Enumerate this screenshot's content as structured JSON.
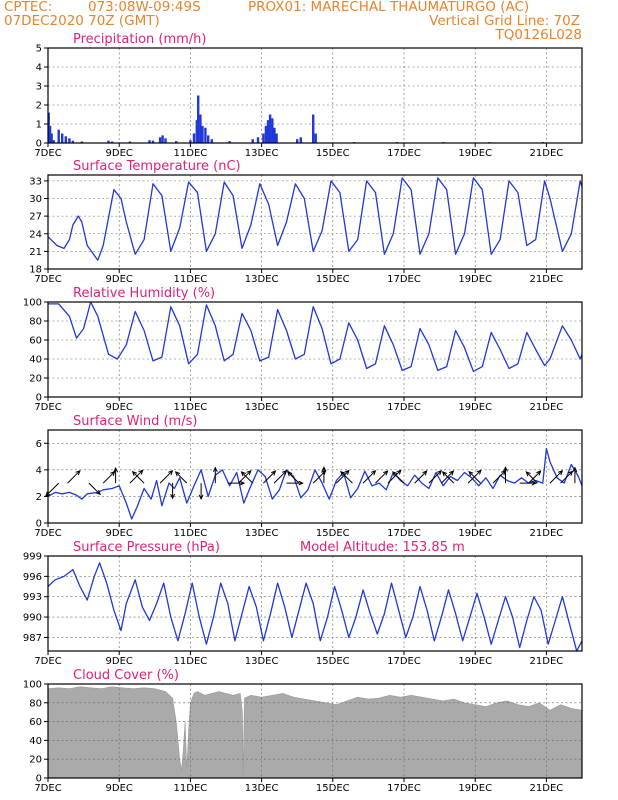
{
  "header": {
    "line1_left": "CPTEC:",
    "line1_mid": "073:08W-09:49S",
    "line1_right": "PROX01: MARECHAL THAUMATURGO (AC)",
    "line2_left": "07DEC2020 70Z (GMT)",
    "line2_right": "Vertical Grid Line: 70Z",
    "line3_right": "TQ0126L028"
  },
  "colors": {
    "header": "#e8842a",
    "title": "#e0207a",
    "line": "#2038d8",
    "cloud": "#aaaaaa",
    "arrow": "#000000"
  },
  "x_axis": {
    "days": [
      7,
      22
    ],
    "tick_labels": [
      "7DEC",
      "9DEC",
      "11DEC",
      "13DEC",
      "15DEC",
      "17DEC",
      "19DEC",
      "21DEC"
    ],
    "tick_days": [
      7,
      9,
      11,
      13,
      15,
      17,
      19,
      21
    ]
  },
  "chart_data": [
    {
      "id": "precip",
      "type": "bar",
      "title": "Precipitation (mm/h)",
      "ylim": [
        0,
        5
      ],
      "yticks": [
        0,
        1,
        2,
        3,
        4,
        5
      ],
      "bars": [
        [
          7.02,
          1.6
        ],
        [
          7.06,
          0.9
        ],
        [
          7.1,
          0.5
        ],
        [
          7.16,
          0.15
        ],
        [
          7.3,
          0.7
        ],
        [
          7.4,
          0.5
        ],
        [
          7.5,
          0.35
        ],
        [
          7.6,
          0.25
        ],
        [
          7.7,
          0.12
        ],
        [
          7.95,
          0.08
        ],
        [
          8.7,
          0.12
        ],
        [
          8.8,
          0.08
        ],
        [
          9.3,
          0.08
        ],
        [
          9.85,
          0.15
        ],
        [
          9.95,
          0.12
        ],
        [
          10.15,
          0.3
        ],
        [
          10.22,
          0.4
        ],
        [
          10.3,
          0.25
        ],
        [
          10.6,
          0.1
        ],
        [
          11.0,
          0.15
        ],
        [
          11.1,
          0.5
        ],
        [
          11.18,
          1.2
        ],
        [
          11.22,
          2.5
        ],
        [
          11.28,
          1.5
        ],
        [
          11.34,
          0.9
        ],
        [
          11.42,
          0.8
        ],
        [
          11.5,
          0.4
        ],
        [
          11.6,
          0.2
        ],
        [
          12.1,
          0.1
        ],
        [
          12.75,
          0.2
        ],
        [
          12.9,
          0.3
        ],
        [
          13.05,
          0.5
        ],
        [
          13.12,
          0.9
        ],
        [
          13.18,
          1.2
        ],
        [
          13.24,
          1.5
        ],
        [
          13.3,
          1.3
        ],
        [
          13.36,
          0.8
        ],
        [
          13.42,
          0.5
        ],
        [
          14.0,
          0.2
        ],
        [
          14.1,
          0.3
        ],
        [
          14.45,
          1.5
        ],
        [
          14.52,
          0.5
        ],
        [
          15.6,
          0.05
        ],
        [
          16.8,
          0.05
        ],
        [
          18.1,
          0.05
        ],
        [
          19.4,
          0.05
        ],
        [
          20.9,
          0.05
        ]
      ]
    },
    {
      "id": "temp",
      "type": "line",
      "title": "Surface Temperature (nC)",
      "ylim": [
        18,
        34
      ],
      "yticks": [
        18,
        21,
        24,
        27,
        30,
        33
      ],
      "ytick_labels": [
        "18",
        "21",
        "24",
        "27",
        "30",
        "33"
      ],
      "x": [
        7.0,
        7.25,
        7.45,
        7.6,
        7.7,
        7.85,
        7.95,
        8.1,
        8.4,
        8.55,
        8.85,
        9.05,
        9.2,
        9.45,
        9.7,
        9.95,
        10.2,
        10.45,
        10.7,
        10.95,
        11.2,
        11.45,
        11.7,
        11.95,
        12.2,
        12.45,
        12.7,
        12.95,
        13.2,
        13.45,
        13.7,
        13.95,
        14.2,
        14.45,
        14.7,
        14.95,
        15.2,
        15.45,
        15.7,
        15.95,
        16.2,
        16.45,
        16.7,
        16.95,
        17.2,
        17.45,
        17.7,
        17.95,
        18.2,
        18.45,
        18.7,
        18.95,
        19.2,
        19.45,
        19.7,
        19.95,
        20.2,
        20.45,
        20.7,
        20.95,
        21.1,
        21.45,
        21.7,
        21.95,
        22.0
      ],
      "y": [
        23.5,
        22.0,
        21.5,
        23.0,
        25.5,
        27.0,
        26.0,
        22.0,
        19.5,
        22.0,
        31.5,
        30.0,
        26.0,
        20.5,
        23.0,
        32.5,
        30.5,
        21.0,
        25.0,
        32.8,
        31.0,
        21.0,
        24.0,
        32.8,
        30.5,
        21.5,
        25.5,
        32.5,
        29.0,
        22.0,
        26.0,
        32.5,
        30.0,
        21.0,
        24.5,
        33.0,
        31.0,
        21.0,
        23.0,
        33.0,
        31.0,
        20.5,
        24.0,
        33.5,
        31.5,
        20.5,
        24.0,
        33.5,
        31.5,
        20.5,
        24.0,
        33.5,
        31.5,
        20.5,
        23.0,
        33.0,
        31.0,
        22.0,
        23.0,
        33.0,
        30.0,
        21.0,
        24.0,
        33.0,
        32.0
      ]
    },
    {
      "id": "rh",
      "type": "line",
      "title": "Relative Humidity (%)",
      "ylim": [
        0,
        100
      ],
      "yticks": [
        0,
        20,
        40,
        60,
        80,
        100
      ],
      "x": [
        7.0,
        7.3,
        7.6,
        7.8,
        8.0,
        8.2,
        8.4,
        8.7,
        8.95,
        9.2,
        9.45,
        9.7,
        9.95,
        10.2,
        10.45,
        10.7,
        10.95,
        11.2,
        11.45,
        11.7,
        11.95,
        12.2,
        12.45,
        12.7,
        12.95,
        13.2,
        13.45,
        13.7,
        13.95,
        14.2,
        14.45,
        14.7,
        14.95,
        15.2,
        15.45,
        15.7,
        15.95,
        16.2,
        16.45,
        16.7,
        16.95,
        17.2,
        17.45,
        17.7,
        17.95,
        18.2,
        18.45,
        18.7,
        18.95,
        19.2,
        19.45,
        19.7,
        19.95,
        20.2,
        20.45,
        20.7,
        20.95,
        21.1,
        21.45,
        21.7,
        21.95,
        22.0
      ],
      "y": [
        98,
        98,
        85,
        62,
        72,
        100,
        85,
        45,
        40,
        55,
        90,
        70,
        38,
        42,
        95,
        75,
        35,
        45,
        97,
        75,
        38,
        45,
        88,
        70,
        38,
        42,
        92,
        70,
        40,
        45,
        95,
        72,
        35,
        40,
        78,
        60,
        30,
        35,
        75,
        55,
        28,
        32,
        72,
        55,
        28,
        32,
        70,
        52,
        27,
        32,
        68,
        50,
        30,
        35,
        68,
        50,
        33,
        40,
        75,
        60,
        40,
        45
      ]
    },
    {
      "id": "wind",
      "type": "line",
      "title": "Surface Wind (m/s)",
      "ylim": [
        0,
        7
      ],
      "yticks": [
        0,
        2,
        4,
        6
      ],
      "x": [
        7.0,
        7.2,
        7.4,
        7.6,
        7.8,
        7.95,
        8.1,
        8.4,
        8.55,
        8.8,
        9.0,
        9.2,
        9.35,
        9.5,
        9.7,
        9.9,
        10.05,
        10.2,
        10.4,
        10.55,
        10.7,
        10.9,
        11.1,
        11.3,
        11.5,
        11.7,
        11.9,
        12.1,
        12.3,
        12.5,
        12.7,
        12.9,
        13.1,
        13.3,
        13.5,
        13.7,
        13.9,
        14.1,
        14.3,
        14.5,
        14.7,
        14.9,
        15.1,
        15.3,
        15.5,
        15.7,
        15.9,
        16.1,
        16.3,
        16.5,
        16.7,
        16.9,
        17.1,
        17.3,
        17.5,
        17.7,
        17.9,
        18.1,
        18.3,
        18.5,
        18.7,
        18.9,
        19.1,
        19.3,
        19.5,
        19.7,
        19.9,
        20.1,
        20.3,
        20.5,
        20.7,
        20.9,
        21.0,
        21.1,
        21.3,
        21.5,
        21.7,
        21.9,
        22.0
      ],
      "y": [
        2.0,
        2.3,
        2.2,
        2.3,
        2.1,
        1.8,
        2.2,
        2.3,
        2.5,
        2.6,
        2.8,
        1.5,
        0.3,
        1.2,
        2.6,
        1.8,
        3.2,
        1.3,
        3.0,
        2.6,
        3.4,
        1.5,
        2.8,
        4.0,
        2.0,
        3.6,
        4.0,
        2.8,
        3.8,
        1.5,
        2.8,
        4.0,
        3.5,
        1.8,
        2.5,
        4.0,
        3.5,
        1.9,
        2.5,
        4.0,
        3.0,
        1.8,
        3.2,
        3.8,
        1.9,
        2.6,
        3.9,
        2.8,
        3.0,
        2.5,
        3.8,
        3.2,
        2.8,
        3.6,
        3.0,
        2.6,
        3.8,
        2.8,
        3.5,
        3.2,
        3.8,
        3.4,
        2.8,
        3.4,
        2.6,
        3.6,
        3.2,
        3.0,
        3.4,
        3.0,
        3.2,
        3.0,
        5.6,
        4.6,
        3.4,
        3.0,
        4.4,
        3.5,
        2.8
      ],
      "arrows": [
        [
          7.3,
          225,
          1.8
        ],
        [
          7.55,
          45,
          1.6
        ],
        [
          8.15,
          135,
          1.2
        ],
        [
          8.55,
          45,
          1.3
        ],
        [
          8.9,
          0,
          1.0
        ],
        [
          9.3,
          45,
          1.8
        ],
        [
          9.7,
          315,
          1.3
        ],
        [
          10.15,
          45,
          1.6
        ],
        [
          10.5,
          180,
          1.0
        ],
        [
          10.9,
          315,
          1.2
        ],
        [
          11.3,
          180,
          1.2
        ],
        [
          11.7,
          0,
          1.1
        ],
        [
          12.05,
          90,
          1.3
        ],
        [
          12.35,
          45,
          1.6
        ],
        [
          12.75,
          315,
          1.2
        ],
        [
          13.05,
          45,
          1.5
        ],
        [
          13.35,
          45,
          1.6
        ],
        [
          13.7,
          90,
          1.3
        ],
        [
          14.05,
          315,
          1.2
        ],
        [
          14.45,
          45,
          1.6
        ],
        [
          14.75,
          0,
          1.2
        ],
        [
          15.1,
          45,
          1.7
        ],
        [
          15.55,
          315,
          1.3
        ],
        [
          15.85,
          45,
          1.6
        ],
        [
          16.2,
          45,
          1.5
        ],
        [
          16.55,
          45,
          1.8
        ],
        [
          17.0,
          315,
          1.2
        ],
        [
          17.3,
          45,
          1.5
        ],
        [
          17.7,
          45,
          1.6
        ],
        [
          18.05,
          45,
          1.5
        ],
        [
          18.4,
          315,
          1.2
        ],
        [
          18.8,
          45,
          1.8
        ],
        [
          19.15,
          315,
          1.3
        ],
        [
          19.5,
          45,
          1.6
        ],
        [
          19.85,
          0,
          1.2
        ],
        [
          20.25,
          90,
          1.3
        ],
        [
          20.5,
          45,
          1.5
        ],
        [
          20.75,
          315,
          1.2
        ],
        [
          21.1,
          45,
          1.6
        ],
        [
          21.4,
          45,
          1.4
        ],
        [
          21.8,
          0,
          1.1
        ]
      ]
    },
    {
      "id": "press",
      "type": "line",
      "title": "Surface Pressure (hPa)",
      "annotation": "Model Altitude: 153.85 m",
      "ylim": [
        985,
        999
      ],
      "yticks": [
        987,
        990,
        993,
        996,
        999
      ],
      "x": [
        7.0,
        7.2,
        7.45,
        7.7,
        7.9,
        8.1,
        8.3,
        8.45,
        8.65,
        8.85,
        9.05,
        9.2,
        9.45,
        9.65,
        9.85,
        10.05,
        10.25,
        10.45,
        10.65,
        10.85,
        11.05,
        11.25,
        11.45,
        11.65,
        11.85,
        12.05,
        12.25,
        12.45,
        12.65,
        12.85,
        13.05,
        13.25,
        13.45,
        13.65,
        13.85,
        14.05,
        14.25,
        14.45,
        14.65,
        14.85,
        15.05,
        15.25,
        15.45,
        15.65,
        15.85,
        16.05,
        16.25,
        16.45,
        16.65,
        16.85,
        17.05,
        17.25,
        17.45,
        17.65,
        17.85,
        18.05,
        18.25,
        18.45,
        18.65,
        18.85,
        19.05,
        19.25,
        19.45,
        19.65,
        19.85,
        20.05,
        20.25,
        20.45,
        20.65,
        20.85,
        21.05,
        21.25,
        21.45,
        21.65,
        21.85,
        22.0
      ],
      "y": [
        994.5,
        995.5,
        996.0,
        997.0,
        994.5,
        992.5,
        996.0,
        998.0,
        995.0,
        991.0,
        988.0,
        992.0,
        995.5,
        991.5,
        989.5,
        992.0,
        995.0,
        990.0,
        986.5,
        990.5,
        995.0,
        990.0,
        986.0,
        990.0,
        995.0,
        992.0,
        986.5,
        990.5,
        994.5,
        991.5,
        986.5,
        990.5,
        995.0,
        991.5,
        987.0,
        991.0,
        995.0,
        992.0,
        986.5,
        990.0,
        994.5,
        991.0,
        987.0,
        990.0,
        994.0,
        990.5,
        987.5,
        990.5,
        995.0,
        991.0,
        987.0,
        990.0,
        994.5,
        991.0,
        986.5,
        990.0,
        994.0,
        990.5,
        986.5,
        990.0,
        993.5,
        990.0,
        986.0,
        989.5,
        993.0,
        990.0,
        985.5,
        989.5,
        993.0,
        991.0,
        986.0,
        989.5,
        993.0,
        989.0,
        985.0,
        986.5
      ]
    },
    {
      "id": "cloud",
      "type": "area",
      "title": "Cloud Cover (%)",
      "ylim": [
        0,
        100
      ],
      "yticks": [
        0,
        20,
        40,
        60,
        80,
        100
      ],
      "x": [
        7.0,
        7.3,
        7.6,
        7.9,
        8.2,
        8.5,
        8.8,
        9.1,
        9.4,
        9.7,
        10.0,
        10.3,
        10.5,
        10.6,
        10.7,
        10.75,
        10.8,
        10.85,
        10.9,
        10.95,
        11.0,
        11.1,
        11.2,
        11.4,
        11.6,
        11.8,
        12.0,
        12.2,
        12.4,
        12.46,
        12.48,
        12.52,
        12.7,
        13.0,
        13.3,
        13.6,
        13.9,
        14.2,
        14.5,
        14.8,
        15.1,
        15.4,
        15.7,
        16.0,
        16.3,
        16.6,
        16.9,
        17.2,
        17.5,
        17.8,
        18.1,
        18.4,
        18.7,
        19.0,
        19.3,
        19.6,
        19.9,
        20.2,
        20.5,
        20.8,
        21.1,
        21.4,
        21.7,
        22.0
      ],
      "y": [
        95,
        96,
        95,
        97,
        96,
        95,
        97,
        96,
        95,
        96,
        95,
        92,
        85,
        60,
        20,
        8,
        30,
        60,
        10,
        50,
        80,
        90,
        92,
        88,
        90,
        92,
        90,
        88,
        90,
        70,
        2,
        85,
        88,
        86,
        88,
        90,
        86,
        84,
        82,
        80,
        78,
        82,
        86,
        84,
        85,
        88,
        86,
        88,
        86,
        84,
        82,
        84,
        80,
        78,
        76,
        80,
        82,
        78,
        76,
        80,
        72,
        78,
        74,
        72
      ]
    }
  ]
}
